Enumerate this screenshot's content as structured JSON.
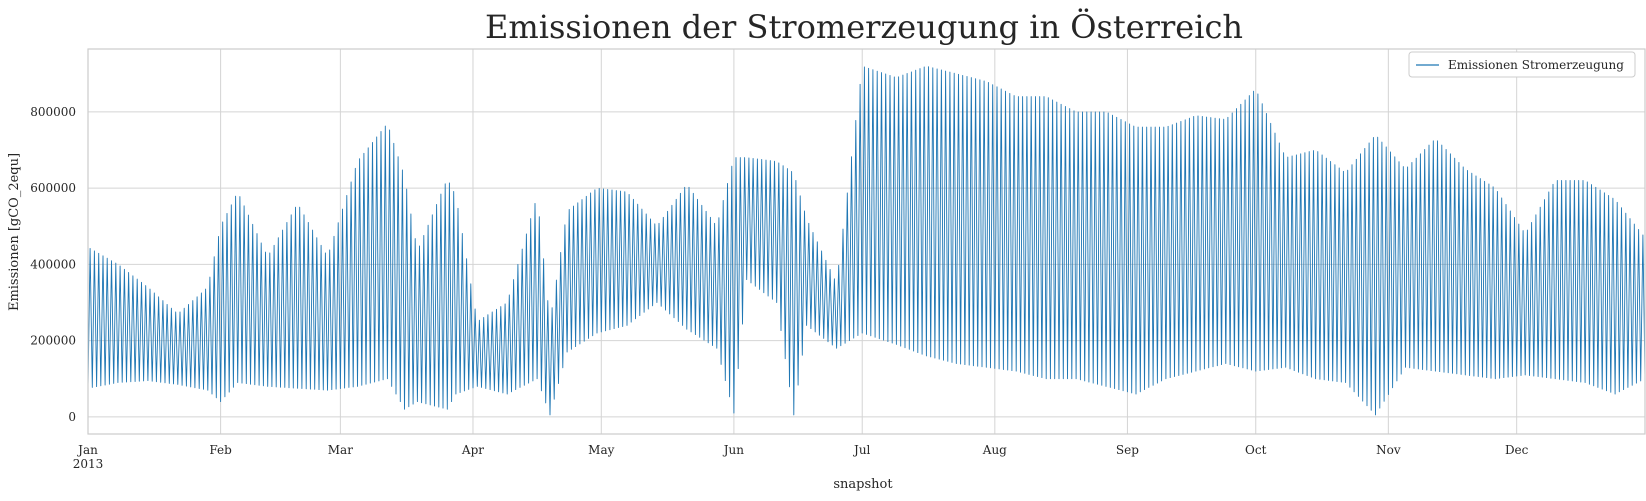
{
  "chart_data": {
    "type": "line",
    "title": "Emissionen der Stromerzeugung in Österreich",
    "xlabel": "snapshot",
    "ylabel": "Emissionen [gCO_2equ]",
    "ylim": [
      -45000,
      965000
    ],
    "xlim": [
      "2013-01-01",
      "2013-12-31"
    ],
    "yticks": [
      0,
      200000,
      400000,
      600000,
      800000
    ],
    "ytick_labels": [
      "0",
      "200000",
      "400000",
      "600000",
      "800000"
    ],
    "xticks": [
      "2013-01-01",
      "2013-02-01",
      "2013-03-01",
      "2013-04-01",
      "2013-05-01",
      "2013-06-01",
      "2013-07-01",
      "2013-08-01",
      "2013-09-01",
      "2013-10-01",
      "2013-11-01",
      "2013-12-01"
    ],
    "xtick_labels": [
      "Jan",
      "Feb",
      "Mar",
      "Apr",
      "May",
      "Jun",
      "Jul",
      "Aug",
      "Sep",
      "Oct",
      "Nov",
      "Dec"
    ],
    "xtick_year": "2013",
    "grid": true,
    "legend_position": "top-right",
    "color": "#1f77b4",
    "series": [
      {
        "name": "Emissionen Stromerzeugung",
        "x": [
          "2013-01-01",
          "2013-01-08",
          "2013-01-15",
          "2013-01-22",
          "2013-01-29",
          "2013-02-01",
          "2013-02-05",
          "2013-02-12",
          "2013-02-19",
          "2013-02-26",
          "2013-03-05",
          "2013-03-12",
          "2013-03-16",
          "2013-03-19",
          "2013-03-26",
          "2013-03-28",
          "2013-04-02",
          "2013-04-09",
          "2013-04-16",
          "2013-04-19",
          "2013-04-23",
          "2013-04-30",
          "2013-05-07",
          "2013-05-14",
          "2013-05-21",
          "2013-05-28",
          "2013-06-01",
          "2013-06-04",
          "2013-06-11",
          "2013-06-15",
          "2013-06-18",
          "2013-06-25",
          "2013-07-01",
          "2013-07-09",
          "2013-07-16",
          "2013-07-23",
          "2013-07-30",
          "2013-08-06",
          "2013-08-13",
          "2013-08-20",
          "2013-08-27",
          "2013-09-03",
          "2013-09-10",
          "2013-09-17",
          "2013-09-24",
          "2013-10-01",
          "2013-10-08",
          "2013-10-15",
          "2013-10-22",
          "2013-10-29",
          "2013-11-05",
          "2013-11-12",
          "2013-11-19",
          "2013-11-26",
          "2013-12-03",
          "2013-12-10",
          "2013-12-17",
          "2013-12-24",
          "2013-12-31"
        ],
        "min": [
          75000,
          90000,
          95000,
          85000,
          70000,
          40000,
          90000,
          80000,
          75000,
          70000,
          80000,
          100000,
          20000,
          40000,
          20000,
          60000,
          80000,
          60000,
          100000,
          5000,
          170000,
          220000,
          240000,
          300000,
          230000,
          180000,
          10000,
          360000,
          300000,
          5000,
          240000,
          180000,
          220000,
          190000,
          160000,
          140000,
          130000,
          120000,
          100000,
          100000,
          80000,
          60000,
          100000,
          120000,
          140000,
          120000,
          130000,
          100000,
          90000,
          5000,
          130000,
          120000,
          110000,
          100000,
          110000,
          100000,
          90000,
          60000,
          100000
        ],
        "max": [
          445000,
          400000,
          340000,
          270000,
          340000,
          500000,
          590000,
          420000,
          560000,
          420000,
          670000,
          770000,
          630000,
          435000,
          625000,
          580000,
          250000,
          300000,
          580000,
          250000,
          540000,
          600000,
          590000,
          500000,
          610000,
          500000,
          680000,
          680000,
          670000,
          640000,
          520000,
          350000,
          920000,
          890000,
          920000,
          900000,
          880000,
          840000,
          840000,
          800000,
          800000,
          760000,
          760000,
          790000,
          780000,
          860000,
          680000,
          700000,
          640000,
          740000,
          650000,
          730000,
          650000,
          600000,
          480000,
          620000,
          620000,
          570000,
          470000
        ]
      }
    ]
  }
}
